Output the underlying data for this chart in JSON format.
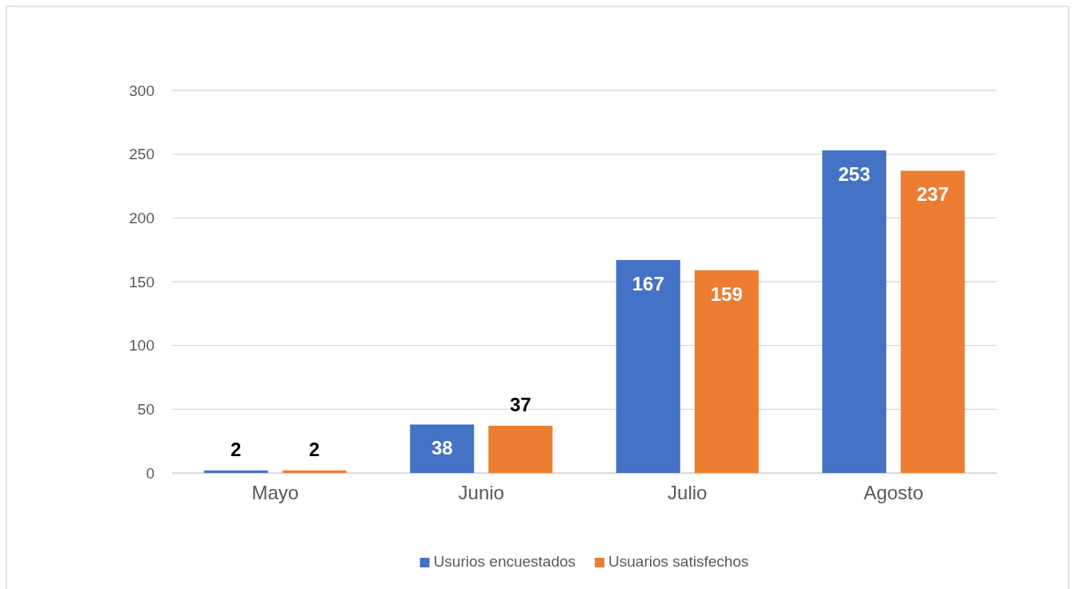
{
  "chart_data": {
    "type": "bar",
    "categories": [
      "Mayo",
      "Junio",
      "Julio",
      "Agosto"
    ],
    "series": [
      {
        "name": "Usurios encuestados",
        "color": "#4472c4",
        "values": [
          2,
          38,
          167,
          253
        ]
      },
      {
        "name": "Usuarios satisfechos",
        "color": "#ed7d31",
        "values": [
          2,
          37,
          159,
          237
        ]
      }
    ],
    "ylim": [
      0,
      300
    ],
    "yticks": [
      0,
      50,
      100,
      150,
      200,
      250,
      300
    ],
    "grid": "y",
    "data_labels": true,
    "legend": "bottom"
  }
}
